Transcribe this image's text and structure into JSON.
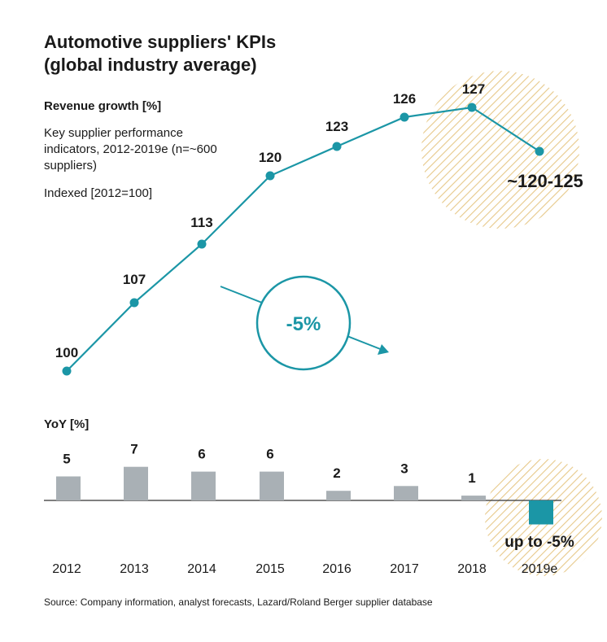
{
  "title_line1": "Automotive suppliers' KPIs",
  "title_line2": "(global industry average)",
  "subtitle": "Revenue growth [%]",
  "description": "Key supplier performance indicators, 2012-2019e (n=~600 suppliers)",
  "index_note": "Indexed [2012=100]",
  "yoy_label": "YoY [%]",
  "source": "Source: Company information, analyst forecasts, Lazard/Roland Berger supplier database",
  "colors": {
    "line": "#1b96a6",
    "bar": "#a9b0b5",
    "bar_highlight": "#1b96a6",
    "hatch": "#e7c98a",
    "text": "#1a1a1a"
  },
  "chart_data": [
    {
      "type": "line",
      "title": "Revenue growth [%]",
      "x": [
        "2012",
        "2013",
        "2014",
        "2015",
        "2016",
        "2017",
        "2018",
        "2019e"
      ],
      "values": [
        100,
        107,
        113,
        120,
        123,
        126,
        127,
        122.5
      ],
      "value_labels": [
        "100",
        "107",
        "113",
        "120",
        "123",
        "126",
        "127",
        "~120-125"
      ],
      "ylim": [
        95,
        132
      ],
      "grid": false,
      "annotation": {
        "text": "-5%",
        "style": "circle with arrow"
      },
      "highlight": {
        "point_index": 7,
        "style": "hatched circle",
        "label": "~120-125"
      }
    },
    {
      "type": "bar",
      "title": "YoY [%]",
      "categories": [
        "2012",
        "2013",
        "2014",
        "2015",
        "2016",
        "2017",
        "2018",
        "2019e"
      ],
      "values": [
        5,
        7,
        6,
        6,
        2,
        3,
        1,
        -5
      ],
      "value_labels": [
        "5",
        "7",
        "6",
        "6",
        "2",
        "3",
        "1",
        "up to -5%"
      ],
      "ylim": [
        -5,
        7
      ],
      "grid": false,
      "highlight": {
        "bar_index": 7,
        "style": "hatched circle"
      }
    }
  ]
}
